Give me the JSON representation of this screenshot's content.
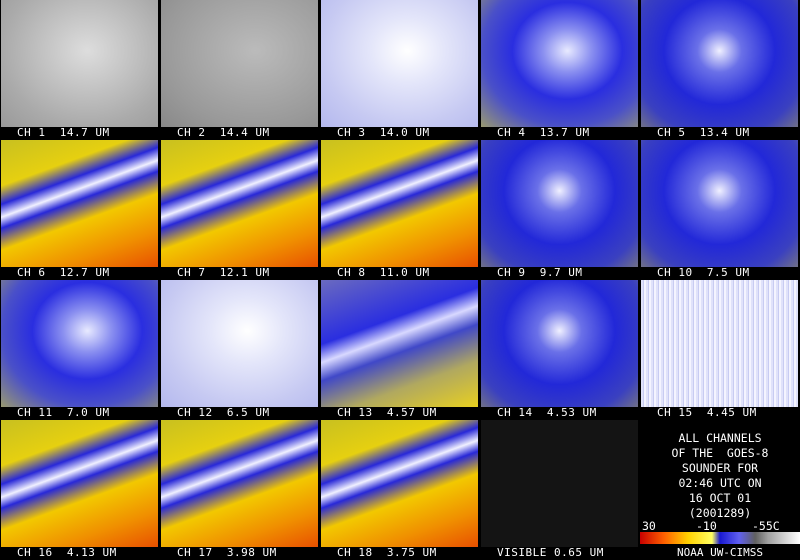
{
  "panels": [
    {
      "label": "CH 1  14.7 UM"
    },
    {
      "label": "CH 2  14.4 UM"
    },
    {
      "label": "CH 3  14.0 UM"
    },
    {
      "label": "CH 4  13.7 UM"
    },
    {
      "label": "CH 5  13.4 UM"
    },
    {
      "label": "CH 6  12.7 UM"
    },
    {
      "label": "CH 7  12.1 UM"
    },
    {
      "label": "CH 8  11.0 UM"
    },
    {
      "label": "CH 9  9.7 UM"
    },
    {
      "label": "CH 10  7.5 UM"
    },
    {
      "label": "CH 11  7.0 UM"
    },
    {
      "label": "CH 12  6.5 UM"
    },
    {
      "label": "CH 13  4.57 UM"
    },
    {
      "label": "CH 14  4.53 UM"
    },
    {
      "label": "CH 15  4.45 UM"
    },
    {
      "label": "CH 16  4.13 UM"
    },
    {
      "label": "CH 17  3.98 UM"
    },
    {
      "label": "CH 18  3.75 UM"
    },
    {
      "label": "VISIBLE 0.65 UM"
    }
  ],
  "info": {
    "lines": [
      "ALL CHANNELS",
      "OF THE  GOES-8",
      "SOUNDER FOR",
      "02:46 UTC ON",
      "16 OCT 01",
      "(2001289)"
    ],
    "scale_labels": [
      "30",
      "-10",
      "-55C"
    ],
    "credit": "NOAA UW-CIMSS"
  }
}
